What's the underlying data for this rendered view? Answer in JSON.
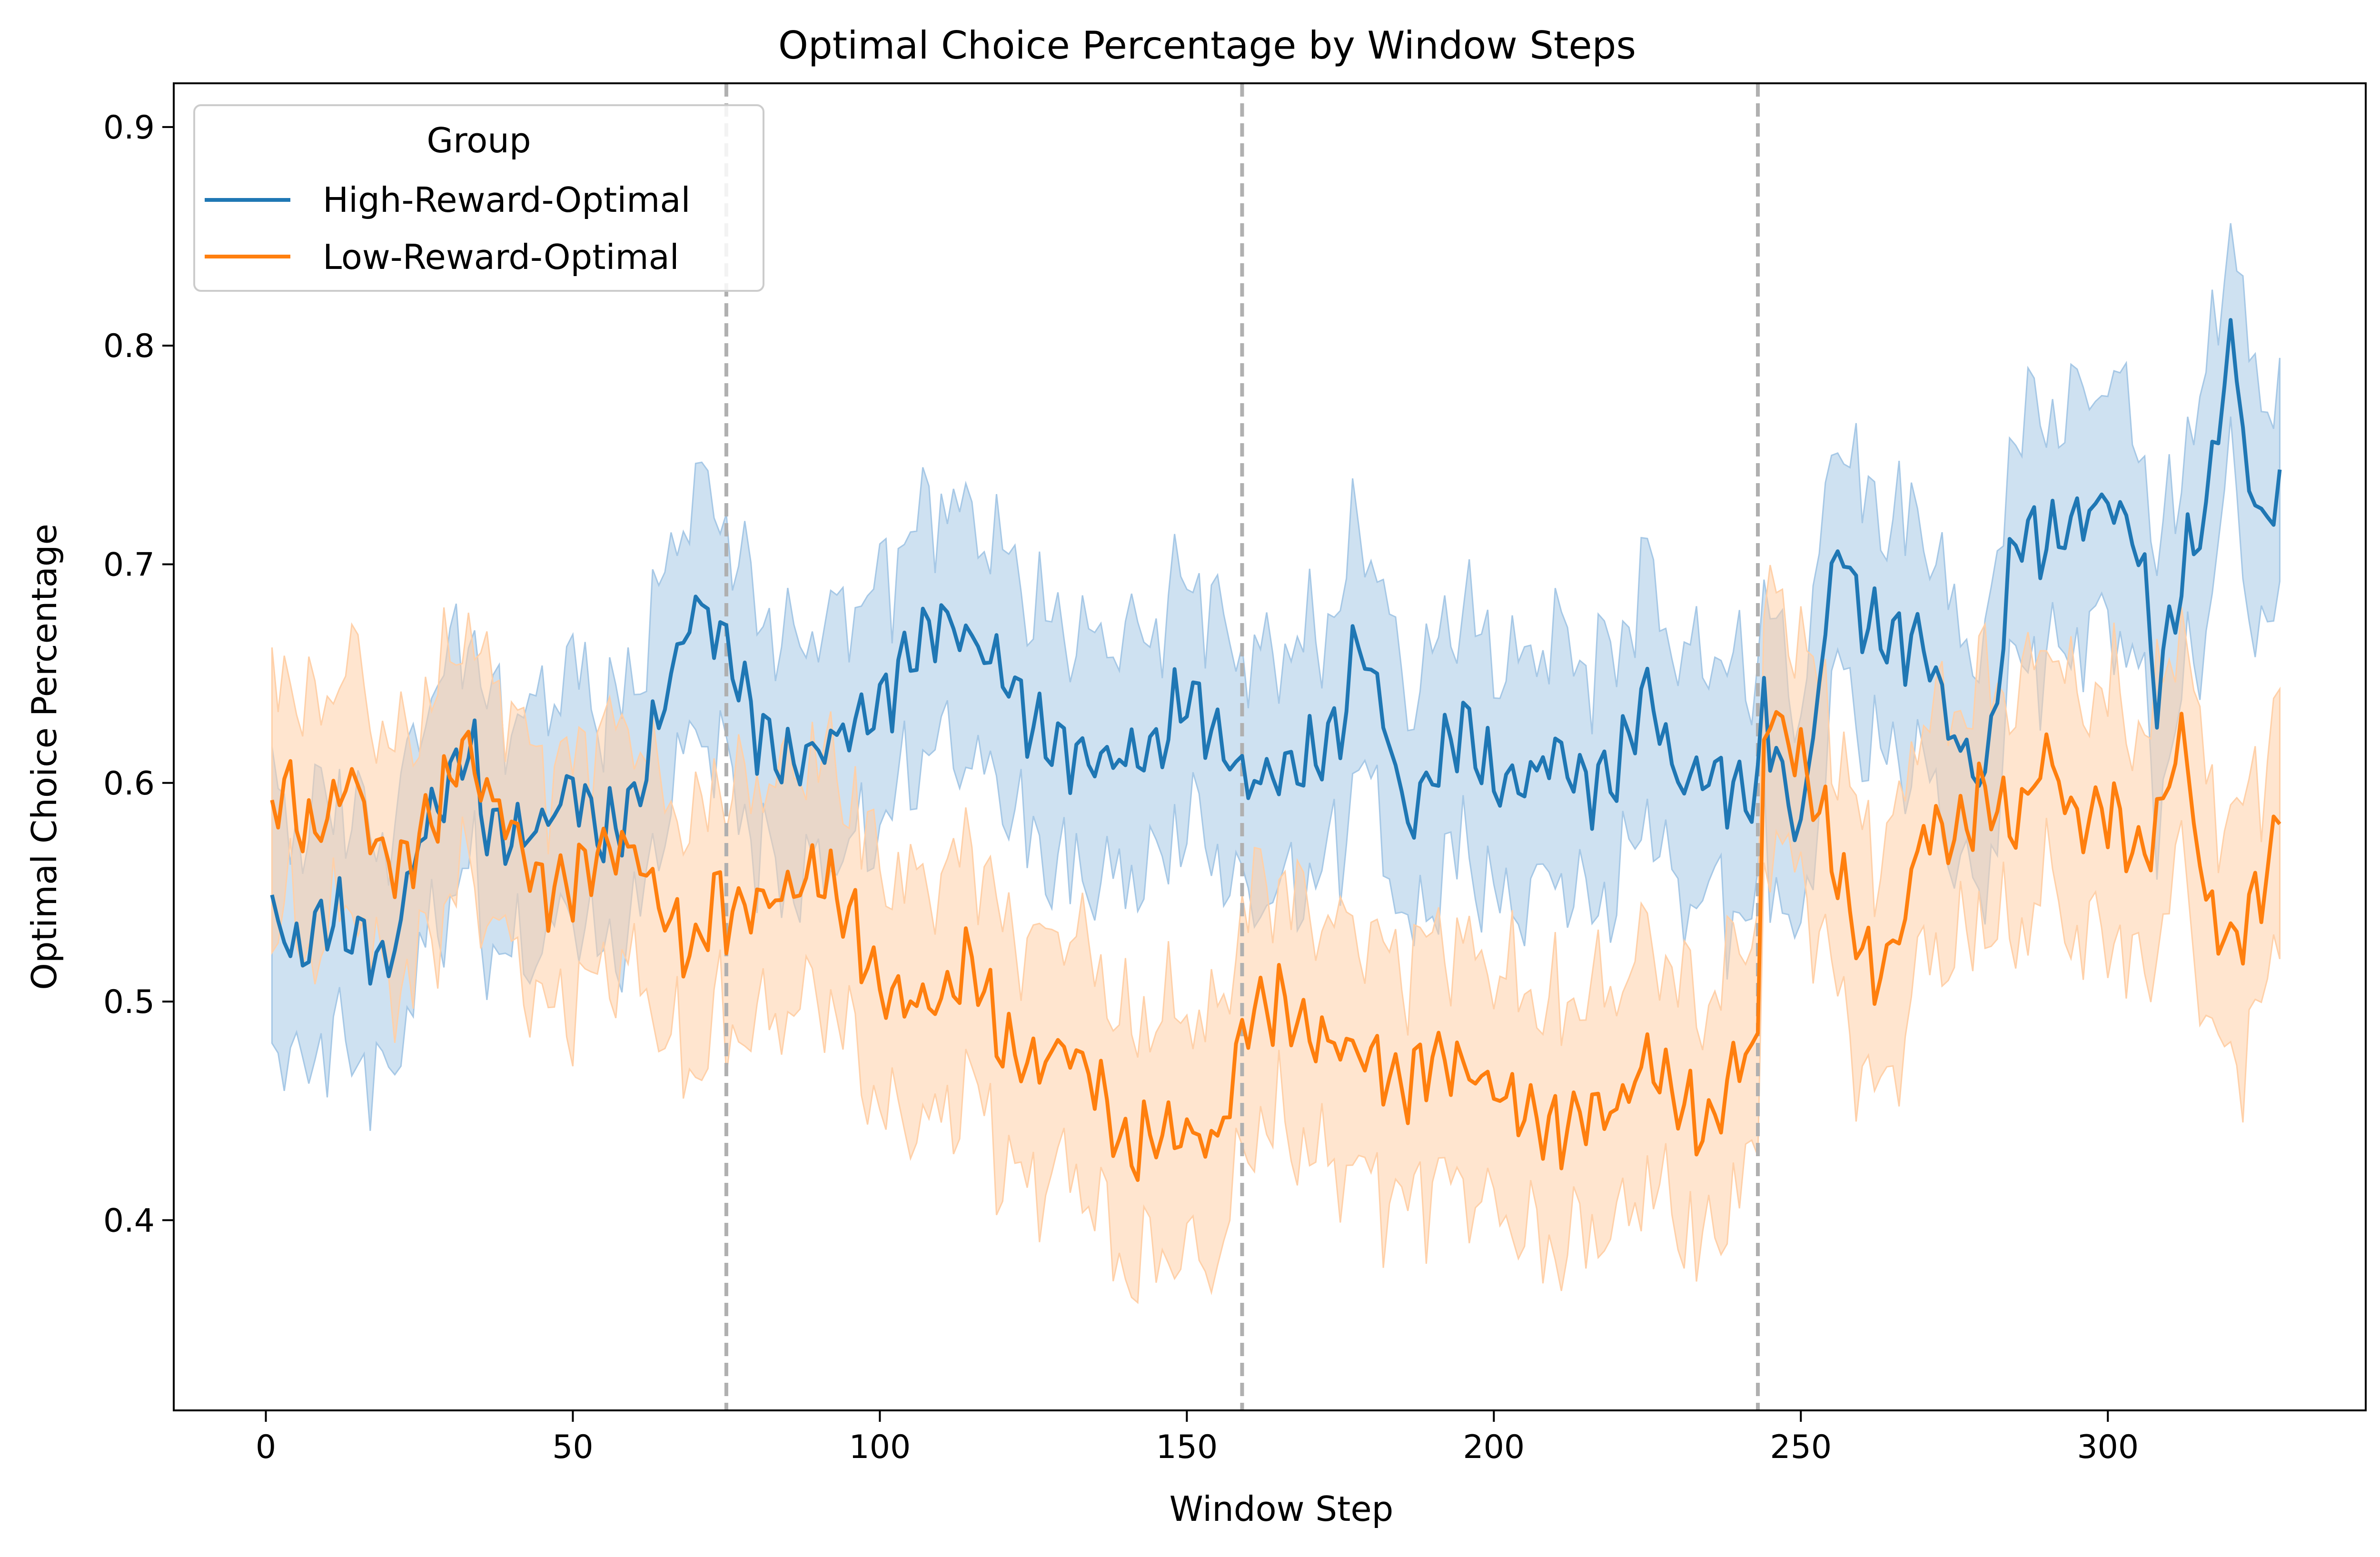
{
  "chart_data": {
    "type": "line",
    "title": "Optimal Choice Percentage by Window Steps",
    "xlabel": "Window Step",
    "ylabel": "Optimal Choice Percentage",
    "xlim": [
      -15,
      342
    ],
    "ylim": [
      0.313,
      0.92
    ],
    "xticks": [
      0,
      50,
      100,
      150,
      200,
      250,
      300
    ],
    "yticks": [
      0.4,
      0.5,
      0.6,
      0.7,
      0.8,
      0.9
    ],
    "xtick_labels": [
      "0",
      "50",
      "100",
      "150",
      "200",
      "250",
      "300"
    ],
    "ytick_labels": [
      "0.4",
      "0.5",
      "0.6",
      "0.7",
      "0.8",
      "0.9"
    ],
    "grid": false,
    "legend": {
      "title": "Group",
      "placement": "top-left"
    },
    "vlines": [
      75,
      159,
      243
    ],
    "vline_color": "#b0b0b0",
    "band_halfwidth": 0.055,
    "series": [
      {
        "name": "High-Reward-Optimal",
        "color": "#1f77b4",
        "band_color": "#a6c8e6",
        "x": [
          1,
          5,
          10,
          15,
          20,
          25,
          30,
          33,
          36,
          40,
          45,
          50,
          55,
          60,
          65,
          70,
          75,
          80,
          85,
          90,
          95,
          100,
          105,
          110,
          115,
          120,
          125,
          130,
          135,
          140,
          145,
          150,
          155,
          160,
          165,
          170,
          175,
          178,
          182,
          186,
          190,
          195,
          200,
          205,
          210,
          215,
          220,
          225,
          230,
          235,
          240,
          243,
          244,
          246,
          250,
          252,
          256,
          260,
          265,
          270,
          275,
          280,
          285,
          290,
          295,
          300,
          305,
          308,
          312,
          316,
          320,
          324,
          328
        ],
        "y": [
          0.543,
          0.52,
          0.54,
          0.53,
          0.515,
          0.575,
          0.6,
          0.62,
          0.58,
          0.575,
          0.58,
          0.6,
          0.575,
          0.59,
          0.64,
          0.683,
          0.663,
          0.625,
          0.608,
          0.615,
          0.625,
          0.635,
          0.66,
          0.675,
          0.665,
          0.652,
          0.625,
          0.615,
          0.61,
          0.612,
          0.615,
          0.642,
          0.62,
          0.6,
          0.605,
          0.61,
          0.625,
          0.668,
          0.632,
          0.58,
          0.605,
          0.628,
          0.6,
          0.6,
          0.615,
          0.598,
          0.605,
          0.645,
          0.6,
          0.605,
          0.595,
          0.595,
          0.64,
          0.61,
          0.575,
          0.625,
          0.713,
          0.675,
          0.665,
          0.665,
          0.62,
          0.6,
          0.715,
          0.71,
          0.72,
          0.73,
          0.71,
          0.64,
          0.695,
          0.725,
          0.805,
          0.72,
          0.73
        ]
      },
      {
        "name": "Low-Reward-Optimal",
        "color": "#ff7f0e",
        "band_color": "#ffd0a8",
        "x": [
          1,
          3,
          7,
          10,
          14,
          18,
          22,
          26,
          30,
          32,
          35,
          40,
          45,
          50,
          55,
          60,
          65,
          70,
          73,
          75,
          80,
          85,
          90,
          95,
          100,
          105,
          110,
          115,
          120,
          125,
          130,
          135,
          140,
          145,
          150,
          155,
          160,
          165,
          170,
          175,
          180,
          185,
          190,
          195,
          200,
          205,
          210,
          215,
          220,
          225,
          230,
          235,
          240,
          243,
          244,
          246,
          250,
          254,
          258,
          262,
          266,
          270,
          275,
          280,
          285,
          290,
          295,
          300,
          305,
          308,
          312,
          316,
          320,
          324,
          328
        ],
        "y": [
          0.59,
          0.6,
          0.575,
          0.585,
          0.605,
          0.57,
          0.56,
          0.58,
          0.6,
          0.62,
          0.6,
          0.58,
          0.55,
          0.555,
          0.57,
          0.57,
          0.54,
          0.52,
          0.55,
          0.54,
          0.545,
          0.55,
          0.56,
          0.54,
          0.505,
          0.5,
          0.5,
          0.52,
          0.48,
          0.47,
          0.48,
          0.465,
          0.43,
          0.44,
          0.44,
          0.435,
          0.495,
          0.5,
          0.485,
          0.48,
          0.475,
          0.46,
          0.475,
          0.47,
          0.46,
          0.45,
          0.44,
          0.45,
          0.45,
          0.475,
          0.455,
          0.44,
          0.475,
          0.48,
          0.625,
          0.63,
          0.61,
          0.58,
          0.54,
          0.51,
          0.53,
          0.58,
          0.575,
          0.595,
          0.58,
          0.615,
          0.58,
          0.59,
          0.565,
          0.58,
          0.625,
          0.545,
          0.525,
          0.545,
          0.58
        ]
      }
    ]
  }
}
